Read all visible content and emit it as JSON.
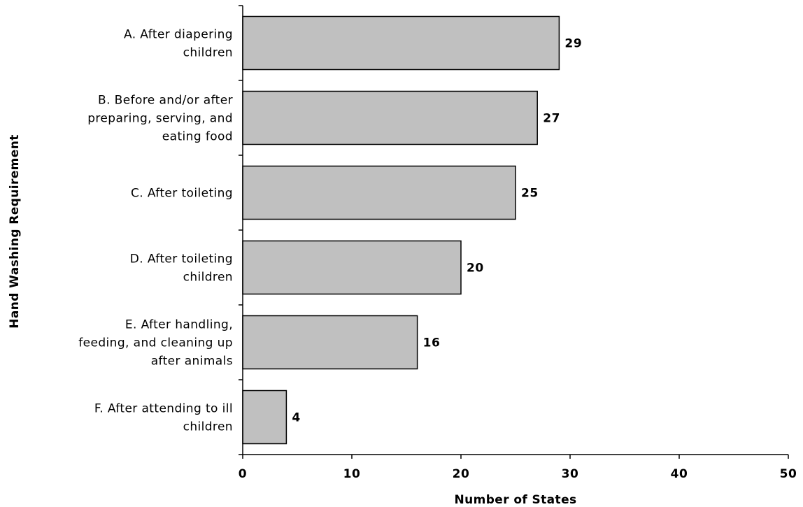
{
  "chart_data": {
    "type": "bar",
    "orientation": "horizontal",
    "title": "",
    "xlabel": "Number of States",
    "ylabel": "Hand Washing Requirement",
    "categories": [
      [
        "A. After diapering",
        "children"
      ],
      [
        "B. Before and/or after",
        "preparing, serving, and",
        "eating food"
      ],
      [
        "C. After toileting"
      ],
      [
        "D. After toileting",
        "children"
      ],
      [
        "E. After handling,",
        "feeding, and cleaning up",
        "after animals"
      ],
      [
        "F. After attending to ill",
        "children"
      ]
    ],
    "values": [
      29,
      27,
      25,
      20,
      16,
      4
    ],
    "xlim": [
      0,
      50
    ],
    "xticks": [
      "0",
      "10",
      "20",
      "30",
      "40",
      "50"
    ],
    "grid": false,
    "legend": "none",
    "colors": {
      "bar_fill": "#c0c0c0",
      "bar_stroke": "#000000",
      "axis": "#000000"
    }
  }
}
